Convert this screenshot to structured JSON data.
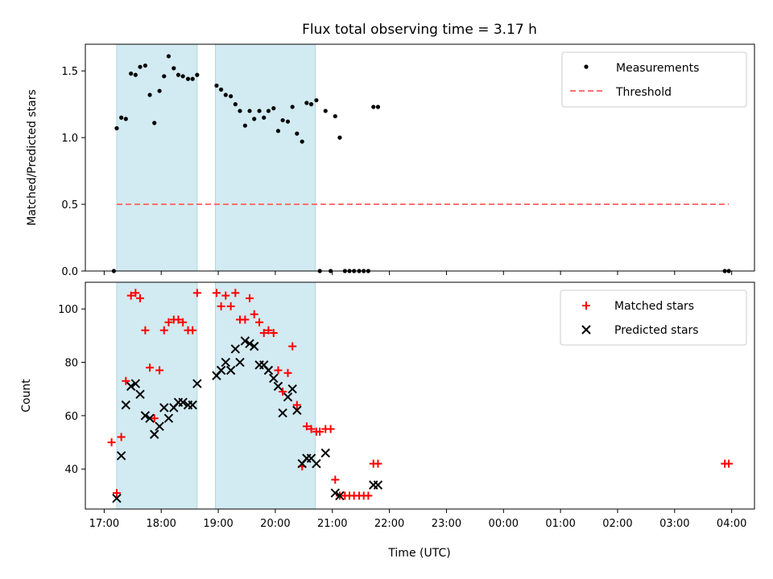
{
  "title": "Flux total observing time = 3.17 h",
  "colors": {
    "band": "#add8e6",
    "measure": "#000000",
    "threshold": "#ff7070",
    "matched": "#ff0000",
    "predicted": "#000000"
  },
  "xaxis": {
    "label": "Time (UTC)",
    "range_hours": [
      16.67,
      28.4
    ],
    "ticks": [
      {
        "v": 17,
        "label": "17:00"
      },
      {
        "v": 18,
        "label": "18:00"
      },
      {
        "v": 19,
        "label": "19:00"
      },
      {
        "v": 20,
        "label": "20:00"
      },
      {
        "v": 21,
        "label": "21:00"
      },
      {
        "v": 22,
        "label": "22:00"
      },
      {
        "v": 23,
        "label": "23:00"
      },
      {
        "v": 24,
        "label": "00:00"
      },
      {
        "v": 25,
        "label": "01:00"
      },
      {
        "v": 26,
        "label": "02:00"
      },
      {
        "v": 27,
        "label": "03:00"
      },
      {
        "v": 28,
        "label": "04:00"
      }
    ]
  },
  "bands_hours": [
    [
      17.22,
      18.63
    ],
    [
      18.95,
      20.7
    ]
  ],
  "chart_data": [
    {
      "type": "scatter",
      "ylabel": "Matched/Predicted stars",
      "ylim": [
        0,
        1.7
      ],
      "yticks": [
        {
          "v": 0,
          "label": "0.0"
        },
        {
          "v": 0.5,
          "label": "0.5"
        },
        {
          "v": 1.0,
          "label": "1.0"
        },
        {
          "v": 1.5,
          "label": "1.5"
        }
      ],
      "legend_position": "top-right",
      "series": [
        {
          "name": "Measurements",
          "x": [
            17.17,
            17.22,
            17.3,
            17.38,
            17.47,
            17.55,
            17.63,
            17.72,
            17.8,
            17.88,
            17.97,
            18.05,
            18.13,
            18.22,
            18.3,
            18.38,
            18.47,
            18.55,
            18.63,
            18.97,
            19.05,
            19.13,
            19.22,
            19.3,
            19.38,
            19.47,
            19.55,
            19.63,
            19.72,
            19.8,
            19.88,
            19.97,
            20.05,
            20.13,
            20.22,
            20.3,
            20.38,
            20.47,
            20.55,
            20.63,
            20.72,
            20.78,
            20.88,
            20.97,
            21.05,
            21.13,
            21.22,
            21.3,
            21.38,
            21.47,
            21.55,
            21.63,
            21.72,
            21.8,
            27.88,
            27.95
          ],
          "y": [
            0.0,
            1.07,
            1.15,
            1.14,
            1.48,
            1.47,
            1.53,
            1.54,
            1.32,
            1.11,
            1.35,
            1.46,
            1.61,
            1.52,
            1.47,
            1.46,
            1.44,
            1.44,
            1.47,
            1.39,
            1.36,
            1.32,
            1.31,
            1.25,
            1.2,
            1.09,
            1.2,
            1.14,
            1.2,
            1.15,
            1.2,
            1.22,
            1.05,
            1.13,
            1.12,
            1.23,
            1.03,
            0.97,
            1.26,
            1.25,
            1.28,
            0.0,
            1.2,
            0.0,
            1.16,
            1.0,
            0.0,
            0.0,
            0.0,
            0.0,
            0.0,
            0.0,
            1.23,
            1.23,
            0.0,
            0.0
          ]
        },
        {
          "name": "Threshold",
          "x": [
            17.22,
            27.95
          ],
          "y": [
            0.5,
            0.5
          ]
        }
      ]
    },
    {
      "type": "scatter",
      "ylabel": "Count",
      "xlabel": "Time (UTC)",
      "ylim": [
        25,
        110
      ],
      "yticks": [
        {
          "v": 40,
          "label": "40"
        },
        {
          "v": 60,
          "label": "60"
        },
        {
          "v": 80,
          "label": "80"
        },
        {
          "v": 100,
          "label": "100"
        }
      ],
      "legend_position": "top-right",
      "series": [
        {
          "name": "Matched stars",
          "x": [
            17.13,
            17.22,
            17.3,
            17.38,
            17.47,
            17.55,
            17.63,
            17.72,
            17.8,
            17.88,
            17.97,
            18.05,
            18.13,
            18.22,
            18.3,
            18.38,
            18.47,
            18.55,
            18.63,
            18.97,
            19.05,
            19.13,
            19.22,
            19.3,
            19.38,
            19.47,
            19.55,
            19.63,
            19.72,
            19.8,
            19.88,
            19.97,
            20.05,
            20.13,
            20.22,
            20.3,
            20.38,
            20.47,
            20.55,
            20.63,
            20.72,
            20.78,
            20.88,
            20.97,
            21.05,
            21.13,
            21.22,
            21.3,
            21.38,
            21.47,
            21.55,
            21.63,
            21.72,
            21.8,
            27.88,
            27.95
          ],
          "y": [
            50,
            31,
            52,
            73,
            105,
            106,
            104,
            92,
            78,
            59,
            77,
            92,
            95,
            96,
            96,
            95,
            92,
            92,
            106,
            106,
            101,
            105,
            101,
            106,
            96,
            96,
            104,
            98,
            95,
            91,
            92,
            91,
            77,
            69,
            76,
            86,
            64,
            41,
            56,
            55,
            54,
            54,
            55,
            55,
            36,
            30,
            30,
            30,
            30,
            30,
            30,
            30,
            42,
            42,
            42,
            42
          ]
        },
        {
          "name": "Predicted stars",
          "x": [
            17.22,
            17.3,
            17.38,
            17.47,
            17.55,
            17.63,
            17.72,
            17.8,
            17.88,
            17.97,
            18.05,
            18.13,
            18.22,
            18.3,
            18.38,
            18.47,
            18.55,
            18.63,
            18.97,
            19.05,
            19.13,
            19.22,
            19.3,
            19.38,
            19.47,
            19.55,
            19.63,
            19.72,
            19.8,
            19.88,
            19.97,
            20.05,
            20.13,
            20.22,
            20.3,
            20.38,
            20.47,
            20.55,
            20.63,
            20.72,
            20.88,
            21.05,
            21.13,
            21.72,
            21.8
          ],
          "y": [
            29,
            45,
            64,
            71,
            72,
            68,
            60,
            59,
            53,
            56,
            63,
            59,
            63,
            65,
            65,
            64,
            64,
            72,
            75,
            77,
            80,
            77,
            85,
            80,
            88,
            87,
            86,
            79,
            79,
            77,
            74,
            71,
            61,
            67,
            70,
            62,
            42,
            44,
            44,
            42,
            46,
            31,
            30,
            34,
            34
          ]
        }
      ]
    }
  ]
}
